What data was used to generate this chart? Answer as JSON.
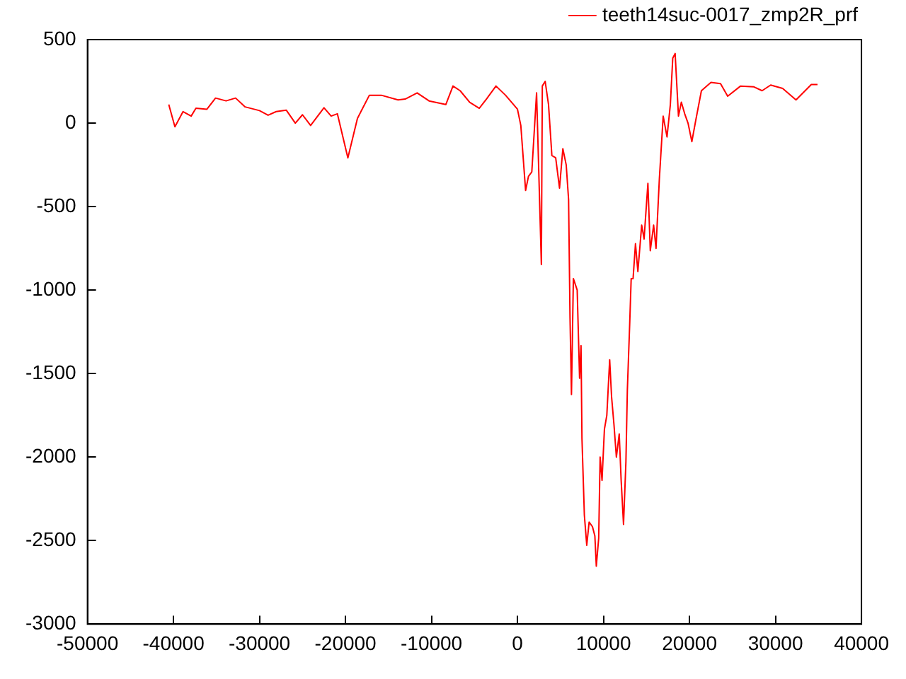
{
  "chart_data": {
    "type": "line",
    "legend": "top right",
    "xlim": [
      -50000,
      40000
    ],
    "xticks": [
      -50000,
      -40000,
      -30000,
      -20000,
      -10000,
      0,
      10000,
      20000,
      30000,
      40000
    ],
    "ylim": [
      -3000,
      500
    ],
    "yticks": [
      -3000,
      -2500,
      -2000,
      -1500,
      -1000,
      -500,
      0,
      500
    ],
    "x": [
      -40550,
      -39833,
      -38889,
      -37944,
      -37389,
      -36111,
      -35111,
      -33889,
      -32778,
      -31667,
      -30000,
      -29000,
      -28056,
      -26889,
      -25833,
      -25000,
      -24056,
      -22500,
      -21667,
      -20944,
      -19722,
      -18611,
      -17222,
      -15833,
      -13889,
      -13056,
      -11667,
      -10278,
      -8333,
      -7500,
      -6667,
      -5556,
      -4444,
      -3611,
      -2500,
      -1389,
      0,
      389,
      944,
      1278,
      1667,
      2222,
      2778,
      2889,
      3222,
      3611,
      4000,
      4444,
      4889,
      5278,
      5667,
      5944,
      6111,
      6278,
      6500,
      6944,
      7222,
      7389,
      7500,
      7778,
      8056,
      8333,
      8722,
      9000,
      9167,
      9444,
      9611,
      9833,
      10111,
      10389,
      10722,
      10944,
      11222,
      11500,
      11833,
      12056,
      12333,
      12611,
      12778,
      13056,
      13222,
      13444,
      13722,
      14000,
      14444,
      14722,
      15167,
      15444,
      15833,
      16111,
      16500,
      16944,
      17389,
      17778,
      18056,
      18333,
      18722,
      19056,
      19444,
      19833,
      20278,
      20722,
      21389,
      22500,
      23611,
      24444,
      25944,
      27500,
      28444,
      29444,
      30833,
      32389,
      34167,
      34889
    ],
    "series": [
      {
        "name": "teeth14suc-0017_zmp2R_prf",
        "color": "#ff0000",
        "values": [
          111,
          -22,
          69,
          42,
          89,
          83,
          150,
          133,
          150,
          97,
          75,
          47,
          69,
          78,
          0,
          50,
          -14,
          92,
          42,
          56,
          -208,
          28,
          167,
          167,
          139,
          144,
          181,
          133,
          111,
          222,
          194,
          125,
          89,
          144,
          222,
          167,
          83,
          -14,
          -403,
          -319,
          -292,
          181,
          -847,
          222,
          250,
          111,
          -194,
          -208,
          -389,
          -153,
          -250,
          -458,
          -1167,
          -1625,
          -931,
          -1000,
          -1528,
          -1333,
          -1889,
          -2347,
          -2528,
          -2389,
          -2417,
          -2472,
          -2653,
          -2486,
          -2000,
          -2139,
          -1833,
          -1750,
          -1417,
          -1639,
          -1806,
          -2000,
          -1861,
          -2139,
          -2403,
          -2028,
          -1597,
          -1194,
          -931,
          -931,
          -722,
          -889,
          -611,
          -694,
          -361,
          -764,
          -611,
          -750,
          -333,
          42,
          -83,
          111,
          389,
          417,
          42,
          125,
          56,
          0,
          -111,
          14,
          194,
          244,
          236,
          161,
          222,
          217,
          194,
          228,
          208,
          139,
          231,
          231
        ]
      }
    ]
  }
}
